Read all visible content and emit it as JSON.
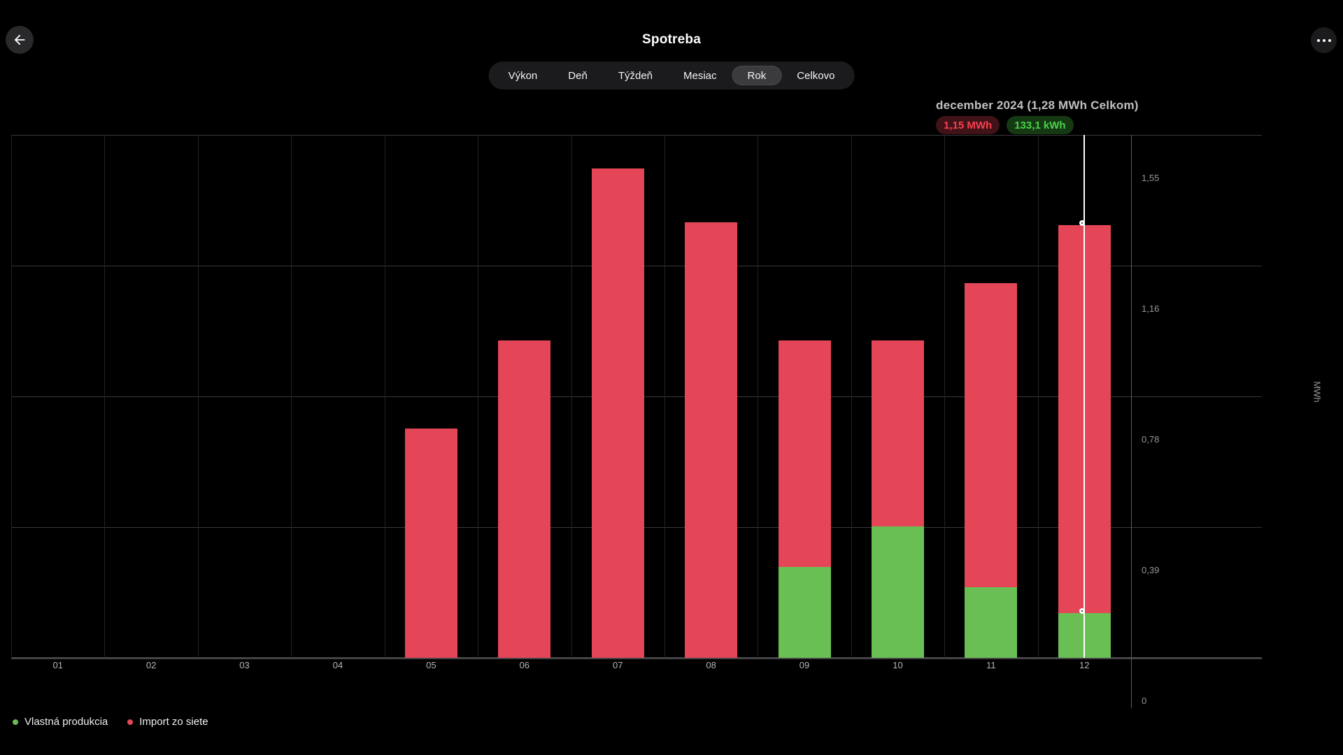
{
  "header": {
    "title": "Spotreba",
    "back_icon": "arrow-left",
    "more_icon": "ellipsis"
  },
  "tabs": {
    "active": "Rok",
    "items": [
      {
        "label": "Výkon"
      },
      {
        "label": "Deň"
      },
      {
        "label": "Týždeň"
      },
      {
        "label": "Mesiac"
      },
      {
        "label": "Rok"
      },
      {
        "label": "Celkovo"
      }
    ]
  },
  "tooltip": {
    "title": "december 2024 (1,28 MWh Celkom)",
    "badges": [
      {
        "label": "1,15 MWh",
        "text_color": "#f7404f",
        "bg_color": "#411218"
      },
      {
        "label": "133,1 kWh",
        "text_color": "#4bd149",
        "bg_color": "#153a13"
      }
    ]
  },
  "chart_data": {
    "type": "bar",
    "stacked": true,
    "title": "",
    "xlabel": "",
    "ylabel": "MWh",
    "ylim": [
      0,
      1.55
    ],
    "grid": true,
    "legend_position": "bottom-left",
    "categories": [
      "01",
      "02",
      "03",
      "04",
      "05",
      "06",
      "07",
      "08",
      "09",
      "10",
      "11",
      "12"
    ],
    "series": [
      {
        "name": "Vlastná produkcia",
        "color": "#6abf54",
        "values": [
          0,
          0,
          0,
          0,
          0,
          0,
          0,
          0,
          0.27,
          0.39,
          0.21,
          0.1331
        ]
      },
      {
        "name": "Import zo siete",
        "color": "#e44658",
        "values": [
          0,
          0,
          0,
          0,
          0.68,
          0.94,
          1.45,
          1.29,
          0.67,
          0.55,
          0.9,
          1.15
        ]
      }
    ],
    "y_ticks": [
      {
        "value": 1.55,
        "label": "1,55"
      },
      {
        "value": 1.1625,
        "label": "1,16"
      },
      {
        "value": 0.775,
        "label": "0,78"
      },
      {
        "value": 0.3875,
        "label": "0,39"
      },
      {
        "value": 0,
        "label": "0"
      }
    ],
    "crosshair": {
      "category_index": 11,
      "color": "#ffffff"
    }
  },
  "legend": {
    "items": [
      {
        "label": "Vlastná produkcia",
        "color": "#6abf54"
      },
      {
        "label": "Import zo siete",
        "color": "#e44658"
      }
    ]
  }
}
